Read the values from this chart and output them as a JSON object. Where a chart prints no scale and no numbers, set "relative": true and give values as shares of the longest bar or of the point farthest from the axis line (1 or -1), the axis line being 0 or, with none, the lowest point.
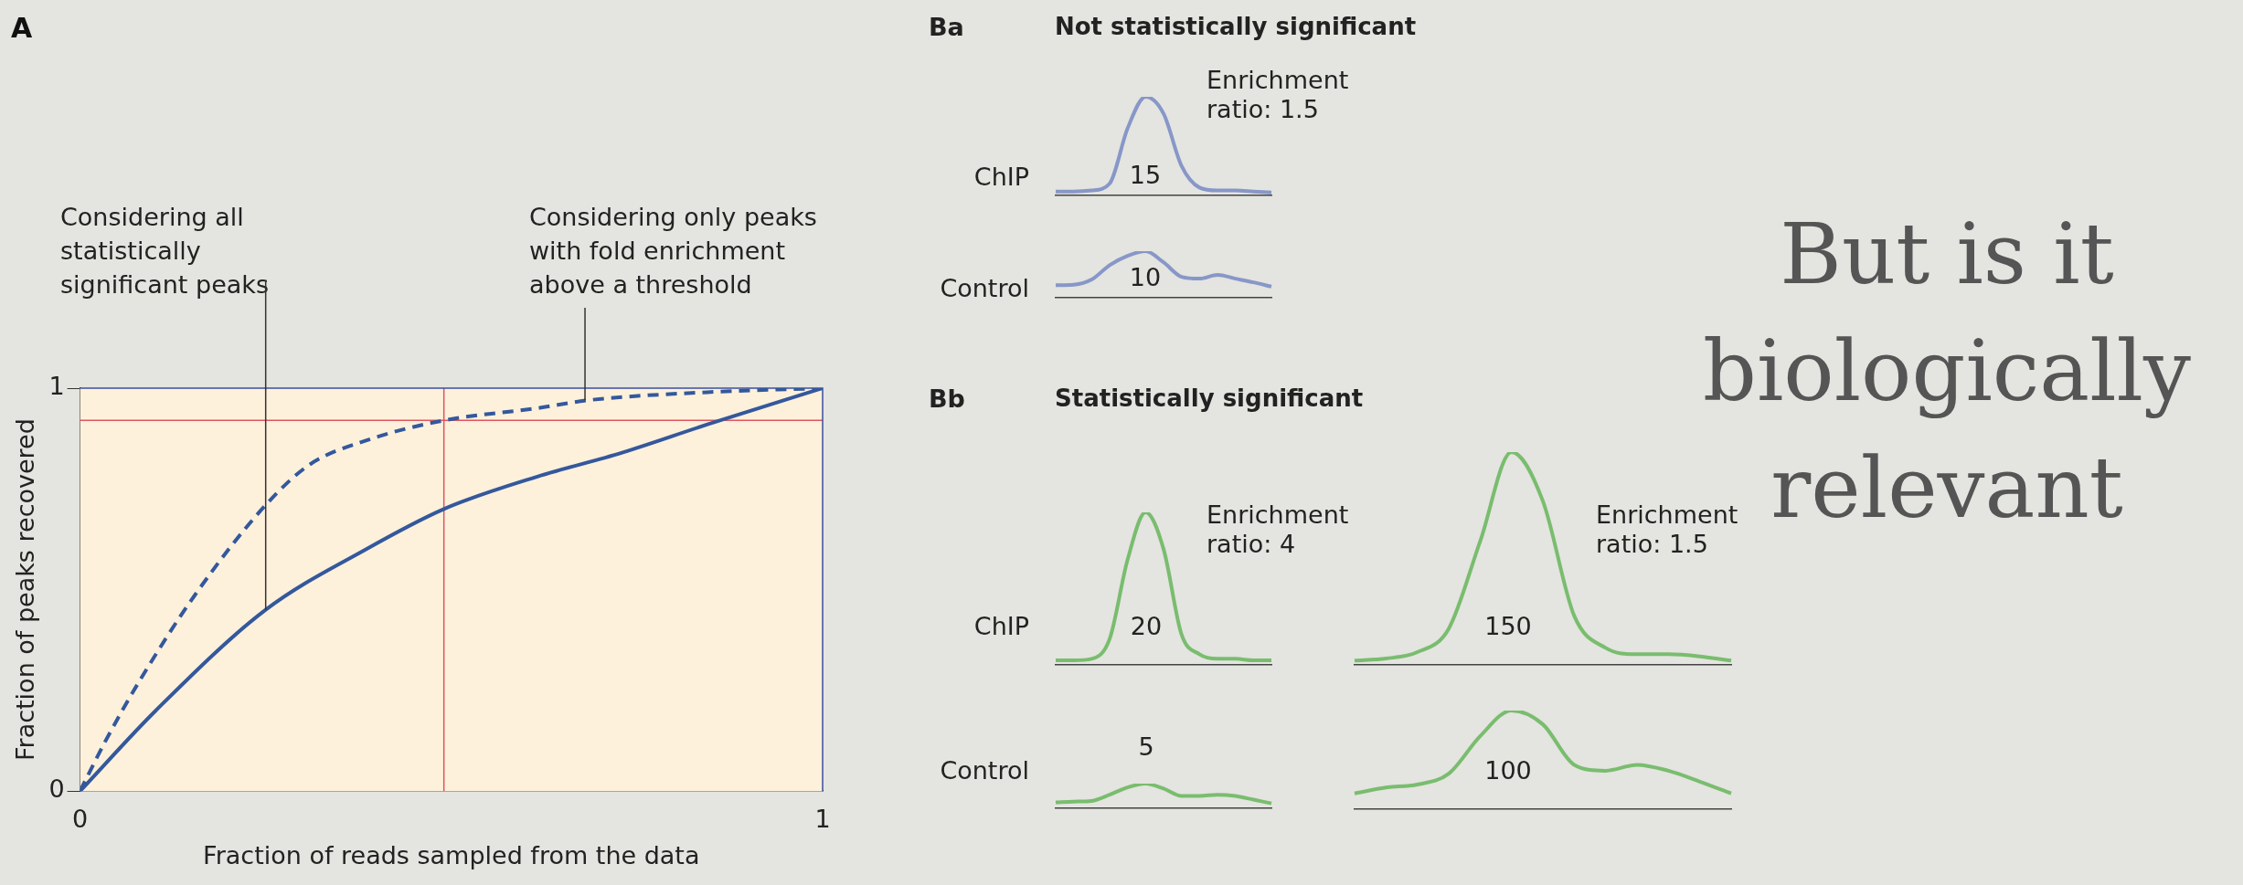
{
  "chart_data": [
    {
      "type": "line",
      "title": "A",
      "xlabel": "Fraction of reads sampled from the data",
      "ylabel": "Fraction of peaks recovered",
      "series": [
        {
          "color": "#34589c",
          "line_style": "solid",
          "x": [
            0,
            0.102,
            0.25,
            0.385,
            0.49,
            0.615,
            0.73,
            0.845,
            1
          ],
          "values": [
            0,
            0.2,
            0.45,
            0.6,
            0.7,
            0.78,
            0.84,
            0.91,
            1
          ]
        },
        {
          "color": "#34589c",
          "line_style": "dashed",
          "x": [
            0,
            0.033,
            0.079,
            0.156,
            0.25,
            0.309,
            0.385,
            0.49,
            0.615,
            0.684,
            0.845,
            1
          ],
          "values": [
            0,
            0.12,
            0.27,
            0.49,
            0.71,
            0.81,
            0.87,
            0.92,
            0.95,
            0.97,
            0.99,
            1
          ]
        }
      ],
      "xlim": [
        0,
        1
      ],
      "ylim": [
        0,
        1
      ],
      "xticks": [
        0,
        1
      ],
      "yticks": [
        0,
        1
      ],
      "ref_lines": [
        {
          "axis": "y",
          "value": 0.92,
          "color": "#e05561"
        },
        {
          "axis": "x",
          "value": 0.49,
          "color": "#e05561"
        }
      ],
      "annotations": [
        {
          "text": "Considering all statistically significant peaks",
          "x": 0.25,
          "y": 0.45
        },
        {
          "text": "Considering only peaks with fold enrichment above a threshold",
          "x": 0.68,
          "y": 0.97
        }
      ]
    },
    {
      "type": "other",
      "title": "Not statistically significant",
      "annotations": [
        "Ba",
        "ChIP",
        "Control",
        "Enrichment ratio: 1.5",
        "15",
        "10"
      ]
    },
    {
      "type": "other",
      "title": "Statistically significant",
      "annotations": [
        "Bb",
        "ChIP",
        "Control",
        "Enrichment ratio: 4",
        "20",
        "5",
        "Enrichment ratio: 1.5",
        "150",
        "100"
      ]
    },
    {
      "type": "other",
      "annotations": [
        "But is it biologically relevant"
      ]
    },
    {
      "type": "line",
      "relative": true,
      "categories": [
        null,
        null,
        null,
        null,
        null,
        null,
        null,
        null,
        null,
        null,
        null,
        null,
        null
      ],
      "series": [
        {
          "color": "#8797c8",
          "values": [
            0.04,
            0.04,
            0.05,
            0.12,
            0.68,
            1,
            0.83,
            0.3,
            0.08,
            0.05,
            0.05,
            0.04,
            0.03
          ]
        }
      ]
    },
    {
      "type": "line",
      "relative": true,
      "categories": [
        null,
        null,
        null,
        null,
        null,
        null,
        null,
        null,
        null,
        null,
        null,
        null,
        null
      ],
      "series": [
        {
          "color": "#8797c8",
          "values": [
            0.27,
            0.28,
            0.39,
            0.7,
            0.9,
            1,
            0.76,
            0.45,
            0.41,
            0.49,
            0.41,
            0.33,
            0.24
          ]
        }
      ]
    },
    {
      "type": "line",
      "relative": true,
      "categories": [
        null,
        null,
        null,
        null,
        null,
        null,
        null,
        null,
        null,
        null,
        null,
        null,
        null
      ],
      "series": [
        {
          "color": "#79bd6e",
          "values": [
            0.03,
            0.03,
            0.04,
            0.17,
            0.69,
            1,
            0.76,
            0.2,
            0.07,
            0.04,
            0.04,
            0.03,
            0.03
          ]
        }
      ]
    },
    {
      "type": "line",
      "relative": true,
      "categories": [
        null,
        null,
        null,
        null,
        null,
        null,
        null,
        null,
        null,
        null,
        null,
        null,
        null
      ],
      "series": [
        {
          "color": "#79bd6e",
          "values": [
            0.02,
            0.03,
            0.06,
            0.17,
            0.58,
            1,
            0.77,
            0.23,
            0.08,
            0.05,
            0.05,
            0.04,
            0.02
          ]
        }
      ]
    },
    {
      "type": "line",
      "relative": true,
      "categories": [
        null,
        null,
        null,
        null,
        null,
        null,
        null,
        null,
        null,
        null,
        null,
        null,
        null
      ],
      "series": [
        {
          "color": "#79bd6e",
          "values": [
            0.24,
            0.27,
            0.3,
            0.55,
            0.85,
            1,
            0.8,
            0.5,
            0.5,
            0.55,
            0.5,
            0.35,
            0.2
          ]
        }
      ]
    },
    {
      "type": "line",
      "relative": true,
      "categories": [
        null,
        null,
        null,
        null,
        null,
        null,
        null,
        null,
        null,
        null,
        null,
        null,
        null
      ],
      "series": [
        {
          "color": "#79bd6e",
          "values": [
            0.16,
            0.22,
            0.25,
            0.36,
            0.74,
            1,
            0.86,
            0.45,
            0.39,
            0.45,
            0.39,
            0.28,
            0.16
          ]
        }
      ]
    }
  ]
}
